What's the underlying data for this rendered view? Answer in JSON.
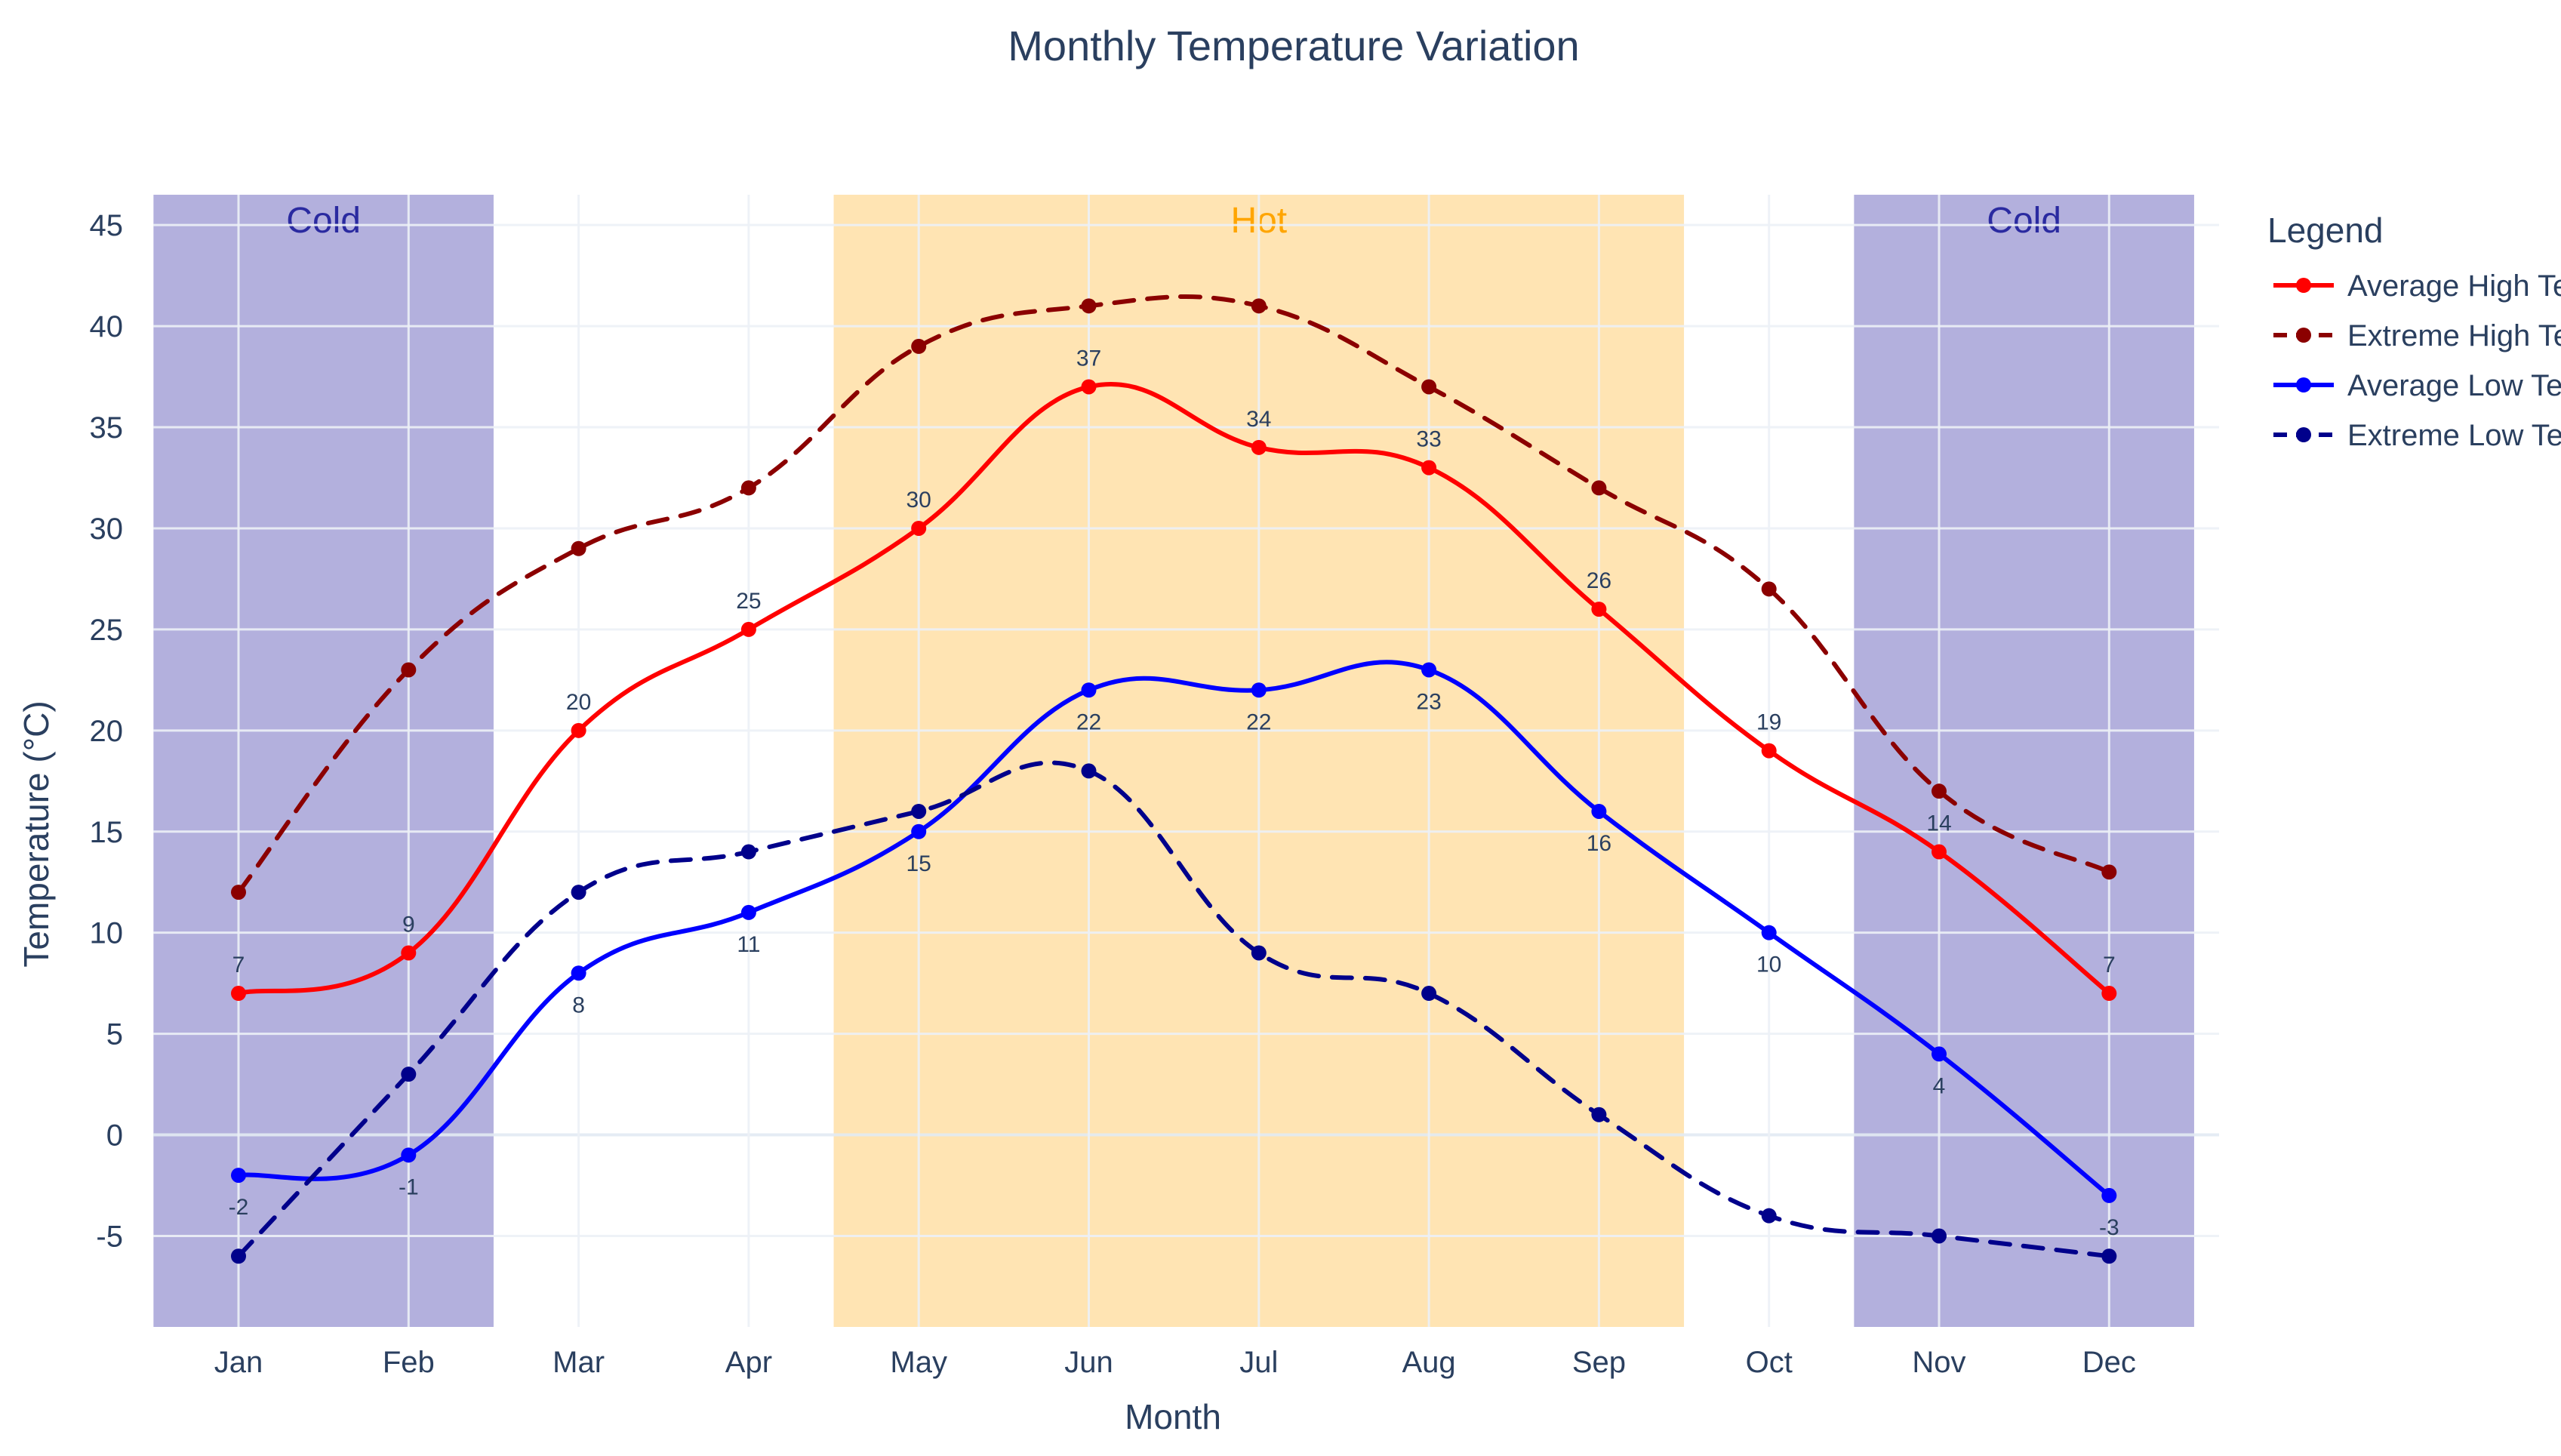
{
  "chart_data": {
    "type": "line",
    "title": "Monthly Temperature Variation",
    "xlabel": "Month",
    "ylabel": "Temperature (°C)",
    "categories": [
      "Jan",
      "Feb",
      "Mar",
      "Apr",
      "May",
      "Jun",
      "Jul",
      "Aug",
      "Sep",
      "Oct",
      "Nov",
      "Dec"
    ],
    "ylim": [
      -9.5,
      46.5
    ],
    "yticks": [
      -5,
      0,
      5,
      10,
      15,
      20,
      25,
      30,
      35,
      40,
      45
    ],
    "grid": true,
    "legend": {
      "title": "Legend",
      "placement": "right",
      "entries": [
        "Average High Ten",
        "Extreme High Ter",
        "Average Low Tem",
        "Extreme Low Tem"
      ]
    },
    "series": [
      {
        "legend_label": "Average High Ten",
        "color": "#ff0000",
        "dash": "solid",
        "show_labels": true,
        "label_position": "above",
        "values": [
          7,
          9,
          20,
          25,
          30,
          37,
          34,
          33,
          26,
          19,
          14,
          7
        ]
      },
      {
        "legend_label": "Extreme High Ter",
        "color": "#8b0000",
        "dash": "dashed",
        "show_labels": false,
        "values": [
          12,
          23,
          29,
          32,
          39,
          41,
          41,
          37,
          32,
          27,
          17,
          13
        ]
      },
      {
        "legend_label": "Average Low Tem",
        "color": "#0000ff",
        "dash": "solid",
        "show_labels": true,
        "label_position": "below",
        "values": [
          -2,
          -1,
          8,
          11,
          15,
          22,
          22,
          23,
          16,
          10,
          4,
          -3
        ]
      },
      {
        "legend_label": "Extreme Low Tem",
        "color": "#00008b",
        "dash": "dashed",
        "show_labels": false,
        "values": [
          -6,
          3,
          12,
          14,
          16,
          18,
          9,
          7,
          1,
          -4,
          -5,
          -6
        ]
      }
    ],
    "bands": [
      {
        "label": "Cold",
        "from": "Dec_prev",
        "start_index": -0.5,
        "end_index": 1.5,
        "color": "#b3b0dd",
        "label_color": "#2a2aa0"
      },
      {
        "label": "Hot",
        "start_index": 3.5,
        "end_index": 8.5,
        "color": "#ffe4b3",
        "label_color": "#ffa500"
      },
      {
        "label": "Cold",
        "start_index": 9.5,
        "end_index": 11.5,
        "color": "#b3b0dd",
        "label_color": "#2a2aa0"
      }
    ]
  }
}
